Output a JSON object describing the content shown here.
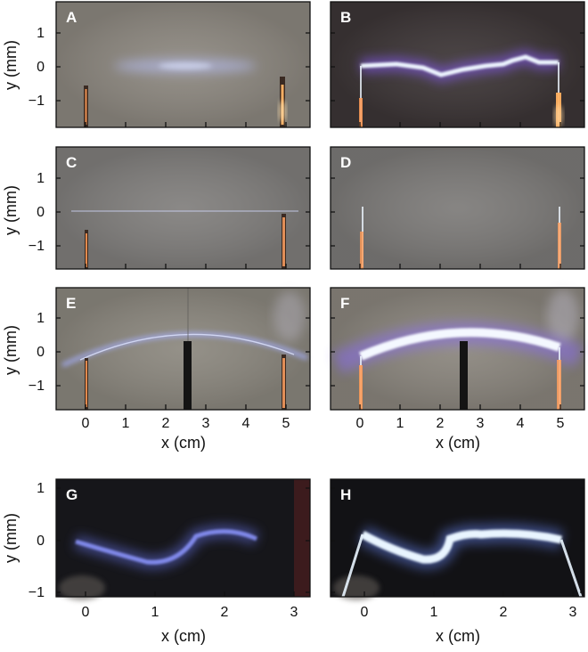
{
  "figure": {
    "panels": [
      {
        "letter": "A",
        "bg": "#8c877f",
        "arc": "plasma-diffuse"
      },
      {
        "letter": "B",
        "bg": "#3c3536",
        "arc": "arc-bright-kinked"
      },
      {
        "letter": "C",
        "bg": "#807e7c",
        "arc": "plasma-thin-line"
      },
      {
        "letter": "D",
        "bg": "#7c7a78",
        "arc": "arc-bright-straight"
      },
      {
        "letter": "E",
        "bg": "#8b877e",
        "arc": "plasma-bowed"
      },
      {
        "letter": "F",
        "bg": "#8a857d",
        "arc": "arc-bright-bowed"
      },
      {
        "letter": "G",
        "bg": "#16161a",
        "arc": "plasma-wavy"
      },
      {
        "letter": "H",
        "bg": "#121215",
        "arc": "arc-bright-wavy"
      }
    ],
    "y_axis": {
      "label": "y (mm)",
      "ticks_rows_1_3": [
        "1",
        "0",
        "−1"
      ],
      "ticks_row_4": [
        "1",
        "0",
        "−1"
      ]
    },
    "x_axis": {
      "label": "x (cm)",
      "ticks_5cm": [
        "0",
        "1",
        "2",
        "3",
        "4",
        "5"
      ],
      "ticks_3cm": [
        "0",
        "1",
        "2",
        "3"
      ]
    },
    "colors": {
      "plasma": "#9aa6ff",
      "arc_core": "#eef6ff",
      "arc_glow": "#8a5cff",
      "electrode": "#e08a50"
    }
  }
}
